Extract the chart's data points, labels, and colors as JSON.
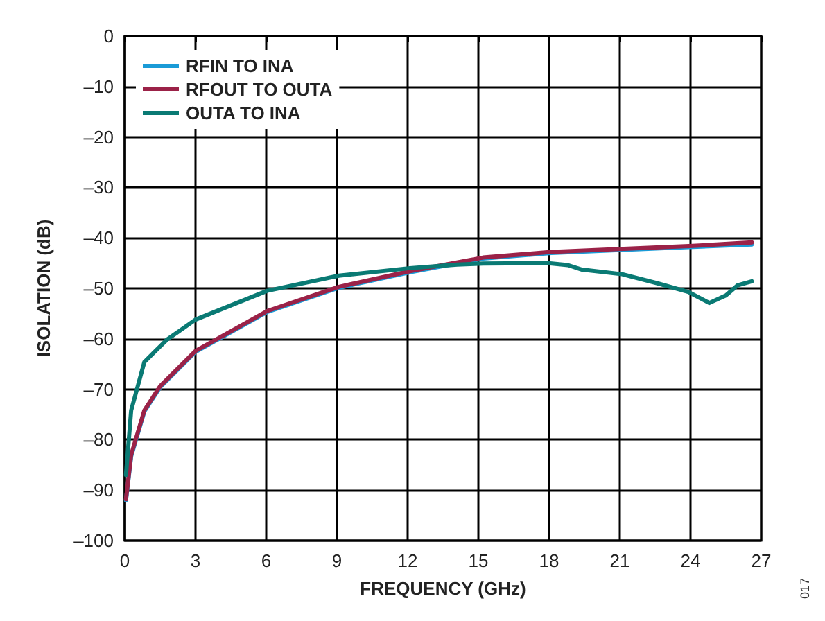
{
  "chart_data": {
    "type": "line",
    "xlabel": "FREQUENCY (GHz)",
    "ylabel": "ISOLATION (dB)",
    "xlim": [
      0,
      27
    ],
    "ylim": [
      -100,
      0
    ],
    "xticks": [
      0,
      3,
      6,
      9,
      12,
      15,
      18,
      21,
      24,
      27
    ],
    "yticks": [
      0,
      {
        "value": -10,
        "label": "–10"
      },
      {
        "value": -20,
        "label": "–20"
      },
      {
        "value": -30,
        "label": "–30"
      },
      {
        "value": -40,
        "label": "–40"
      },
      {
        "value": -50,
        "label": "–50"
      },
      {
        "value": -60,
        "label": "–60"
      },
      {
        "value": -70,
        "label": "–70"
      },
      {
        "value": -80,
        "label": "–80"
      },
      {
        "value": -90,
        "label": "–90"
      },
      {
        "value": -100,
        "label": "–100"
      }
    ],
    "grid": true,
    "legend": "top left",
    "marker": "none",
    "line_style": "solid",
    "annotations": [
      "017"
    ],
    "series": [
      {
        "name": "RFIN TO INA",
        "color": "#1a9bd7",
        "x": [
          0.05,
          0.27,
          0.83,
          1.5,
          3.0,
          6.04,
          9.08,
          12.1,
          15.2,
          18.1,
          21,
          24.1,
          26.6
        ],
        "values": [
          -92,
          -83.3,
          -74.4,
          -69.6,
          -62.6,
          -54.7,
          -49.9,
          -46.8,
          -44.1,
          -43,
          -42.4,
          -41.8,
          -41.3
        ]
      },
      {
        "name": "RFOUT TO OUTA",
        "color": "#9b2248",
        "x": [
          0.05,
          0.27,
          0.83,
          1.5,
          3.0,
          6.04,
          9.08,
          12.1,
          15.2,
          18.1,
          21,
          24.1,
          26.6
        ],
        "values": [
          -91.8,
          -83,
          -74.2,
          -69.4,
          -62.4,
          -54.5,
          -49.7,
          -46.6,
          -43.9,
          -42.8,
          -42.2,
          -41.6,
          -40.9
        ]
      },
      {
        "name": "OUTA TO INA",
        "color": "#0a7a74",
        "x": [
          0.05,
          0.27,
          0.83,
          1.78,
          3.0,
          6.04,
          9.08,
          12.1,
          14.1,
          15.2,
          17.9,
          18.8,
          19.4,
          21.1,
          22.6,
          23.9,
          24.8,
          25.5,
          26.0,
          26.6
        ],
        "values": [
          -87,
          -74.2,
          -64.6,
          -60.2,
          -56.2,
          -50.5,
          -47.5,
          -46,
          -45.3,
          -45.1,
          -45,
          -45.4,
          -46.3,
          -47.2,
          -49,
          -50.7,
          -52.9,
          -51.4,
          -49.4,
          -48.6
        ]
      }
    ]
  }
}
